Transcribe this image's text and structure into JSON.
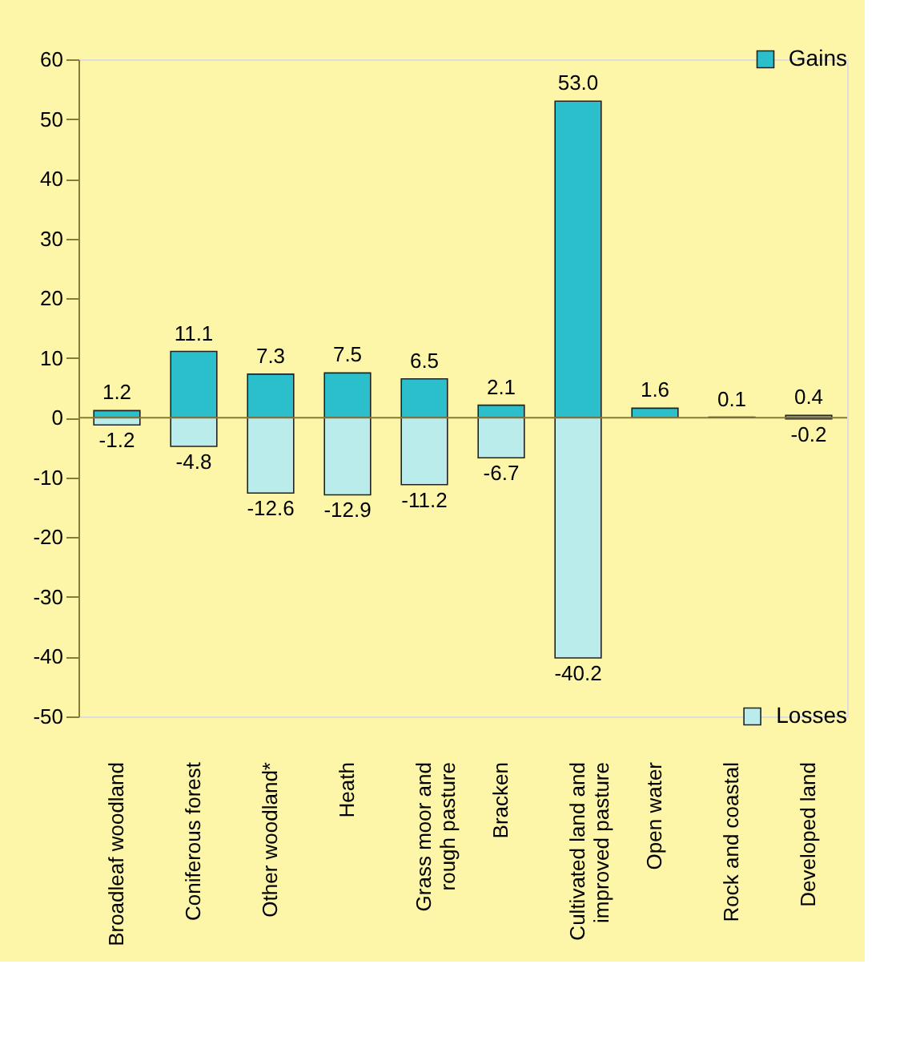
{
  "chart_data": {
    "type": "bar",
    "stacked": true,
    "categories": [
      "Broadleaf woodland",
      "Coniferous forest",
      "Other woodland*",
      "Heath",
      "Grass moor and\nrough pasture",
      "Bracken",
      "Cultivated land and\nimproved pasture",
      "Open water",
      "Rock and coastal",
      "Developed land"
    ],
    "series": [
      {
        "name": "Gains",
        "color": "#2bbfcc",
        "values": [
          1.2,
          11.1,
          7.3,
          7.5,
          6.5,
          2.1,
          53.0,
          1.6,
          0.1,
          0.4
        ],
        "value_labels": [
          "1.2",
          "11.1",
          "7.3",
          "7.5",
          "6.5",
          "2.1",
          "53.0",
          "1.6",
          "0.1",
          "0.4"
        ]
      },
      {
        "name": "Losses",
        "color": "#b9ecea",
        "values": [
          -1.2,
          -4.8,
          -12.6,
          -12.9,
          -11.2,
          -6.7,
          -40.2,
          null,
          null,
          -0.2
        ],
        "value_labels": [
          "-1.2",
          "-4.8",
          "-12.6",
          "-12.9",
          "-11.2",
          "-6.7",
          "-40.2",
          null,
          null,
          "-0.2"
        ]
      }
    ],
    "ylim": [
      -50,
      60
    ],
    "yticks": [
      -50,
      -40,
      -30,
      -20,
      -10,
      0,
      10,
      20,
      30,
      40,
      50,
      60
    ],
    "ref_lines": [
      {
        "axis": "y",
        "value": 0,
        "color": "#8a7a3a"
      }
    ],
    "grid": false,
    "legend": "right"
  }
}
